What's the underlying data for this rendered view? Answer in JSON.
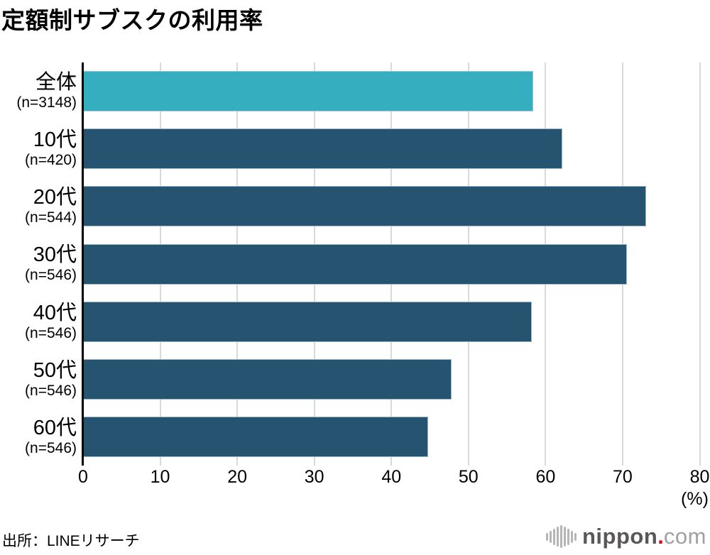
{
  "title": "定額制サブスクの利用率",
  "source": "出所：LINEリサーチ",
  "logo": {
    "name": "nippon.com",
    "icon": "sound-wave-bars-icon",
    "text_main": "nippon",
    "dot": ".",
    "text_tld": "com",
    "color_main": "#595757",
    "color_dot": "#e60012",
    "color_tld": "#9fa0a0",
    "color_icon": "#b5b5b6"
  },
  "chart_data": {
    "type": "bar",
    "orientation": "horizontal",
    "title": "定額制サブスクの利用率",
    "categories": [
      "全体",
      "10代",
      "20代",
      "30代",
      "40代",
      "50代",
      "60代"
    ],
    "sub_labels": [
      "(n=3148)",
      "(n=420)",
      "(n=544)",
      "(n=546)",
      "(n=546)",
      "(n=546)",
      "(n=546)"
    ],
    "values": [
      58.4,
      62.2,
      73.0,
      70.6,
      58.2,
      47.8,
      44.8
    ],
    "bar_colors": [
      "#35AFC0",
      "#26536F",
      "#26536F",
      "#26536F",
      "#26536F",
      "#26536F",
      "#26536F"
    ],
    "xlim": [
      0,
      80
    ],
    "xticks": [
      0,
      10,
      20,
      30,
      40,
      50,
      60,
      70,
      80
    ],
    "x_unit_label": "(%)",
    "grid": true,
    "gridline_color": "#d9d9d9",
    "axis_color": "#000000",
    "legend": null
  }
}
